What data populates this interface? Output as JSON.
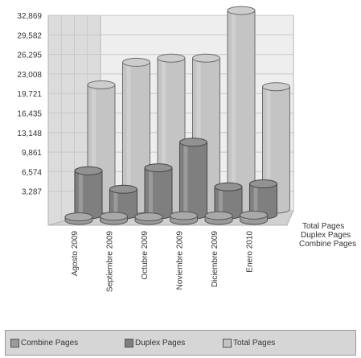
{
  "chart_data": {
    "type": "bar",
    "style": "3d-cylinder",
    "categories": [
      "Agosto 2009",
      "Septiembre 2009",
      "Octubre 2009",
      "Noviembre 2009",
      "Diciembre 2009",
      "Enero 2010"
    ],
    "series": [
      {
        "name": "Combine Pages",
        "values": [
          600,
          700,
          600,
          800,
          800,
          900
        ],
        "color": "#9a9a9a"
      },
      {
        "name": "Duplex Pages",
        "values": [
          7400,
          4300,
          7900,
          12200,
          4700,
          5200
        ],
        "color": "#7f7f7f"
      },
      {
        "name": "Total Pages",
        "values": [
          20900,
          24700,
          25400,
          25400,
          33400,
          20600
        ],
        "color": "#c4c4c4"
      }
    ],
    "y_ticks": [
      "3,287",
      "6,574",
      "9,861",
      "13,148",
      "16,435",
      "19,721",
      "23,008",
      "26,295",
      "29,582",
      "32,869"
    ],
    "ylim": [
      0,
      32869
    ],
    "grid": true,
    "legend_position": "bottom"
  },
  "legend": {
    "items": [
      "Combine Pages",
      "Duplex Pages",
      "Total Pages"
    ]
  }
}
